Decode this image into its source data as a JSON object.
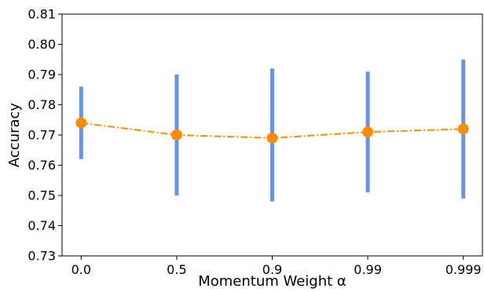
{
  "chart_data": {
    "type": "line",
    "xlabel": "Momentum Weight α",
    "ylabel": "Accuracy",
    "categories": [
      "0.0",
      "0.5",
      "0.9",
      "0.99",
      "0.999"
    ],
    "series": [
      {
        "values": [
          0.774,
          0.77,
          0.769,
          0.771,
          0.772
        ],
        "error_low": [
          0.762,
          0.75,
          0.748,
          0.751,
          0.749
        ],
        "error_high": [
          0.786,
          0.79,
          0.792,
          0.791,
          0.795
        ],
        "line_color": "#ff8c00",
        "marker_color": "#ff8c00",
        "error_color": "#6495ed",
        "line_style": "dash-dot"
      }
    ],
    "ylim": [
      0.73,
      0.81
    ],
    "yticks": [
      "0.73",
      "0.74",
      "0.75",
      "0.76",
      "0.77",
      "0.78",
      "0.79",
      "0.80",
      "0.81"
    ],
    "grid": false,
    "legend": "none"
  }
}
